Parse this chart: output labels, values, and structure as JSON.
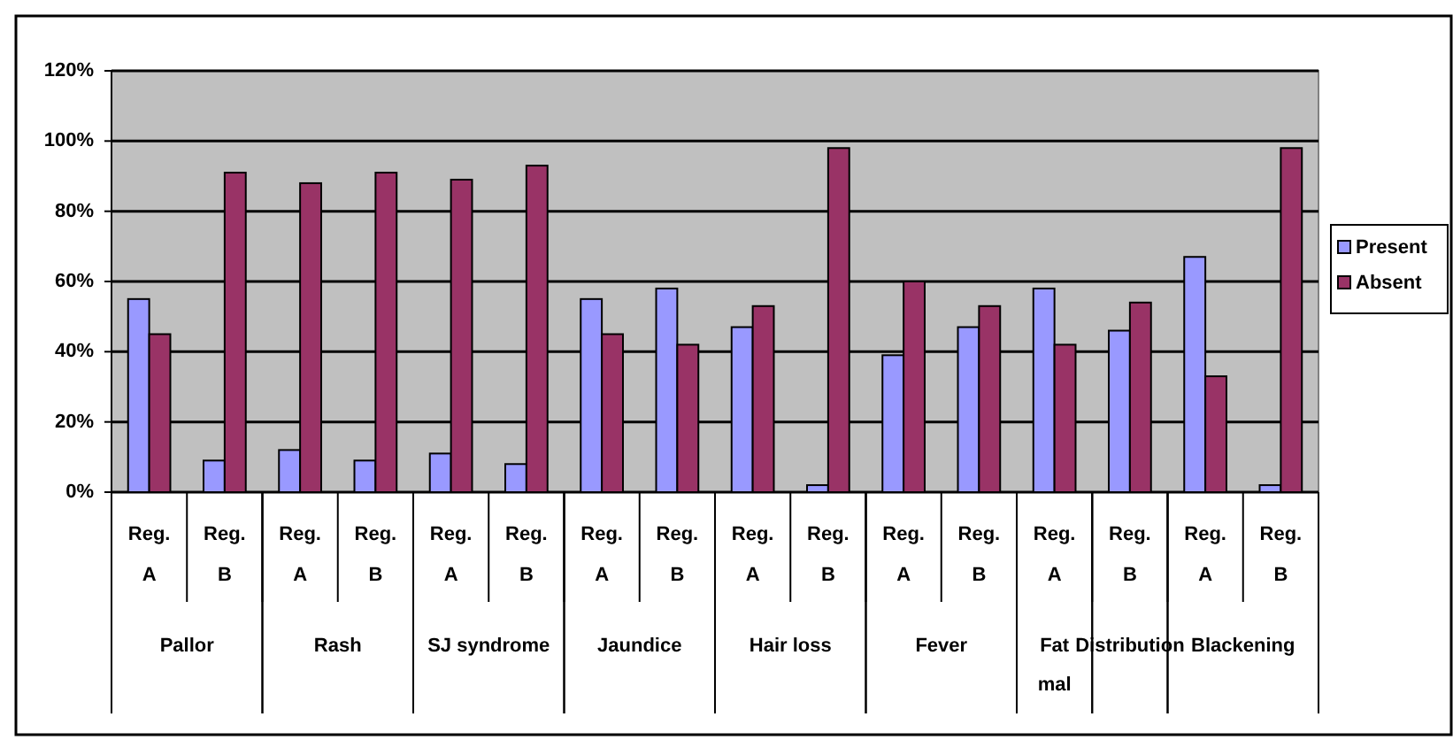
{
  "chart_data": {
    "type": "bar",
    "categories": [
      "Reg. A",
      "Reg. B",
      "Reg. A",
      "Reg. B",
      "Reg. A",
      "Reg. B",
      "Reg. A",
      "Reg. B",
      "Reg. A",
      "Reg. B",
      "Reg. A",
      "Reg. B",
      "Reg. A",
      "Reg. B",
      "Reg. A",
      "Reg. B"
    ],
    "annotations": [
      "Pallor",
      "Rash",
      "SJ syndrome",
      "Jaundice",
      "Hair loss",
      "Fever",
      "Fat mal",
      "Distribution",
      "Blackening"
    ],
    "series": [
      {
        "name": "Present",
        "color": "#9999ff",
        "values": [
          55,
          9,
          12,
          9,
          11,
          8,
          55,
          58,
          47,
          2,
          39,
          47,
          58,
          46,
          67,
          2
        ]
      },
      {
        "name": "Absent",
        "color": "#993366",
        "values": [
          45,
          91,
          88,
          91,
          89,
          93,
          45,
          42,
          53,
          98,
          60,
          53,
          42,
          54,
          33,
          98
        ]
      }
    ],
    "ylim": [
      0,
      120
    ],
    "yticks": [
      {
        "value": 0,
        "label": "0%"
      },
      {
        "value": 20,
        "label": "20%"
      },
      {
        "value": 40,
        "label": "40%"
      },
      {
        "value": 60,
        "label": "60%"
      },
      {
        "value": 80,
        "label": "80%"
      },
      {
        "value": 100,
        "label": "100%"
      },
      {
        "value": 120,
        "label": "120%"
      }
    ],
    "grid": "y",
    "legend": "right"
  }
}
